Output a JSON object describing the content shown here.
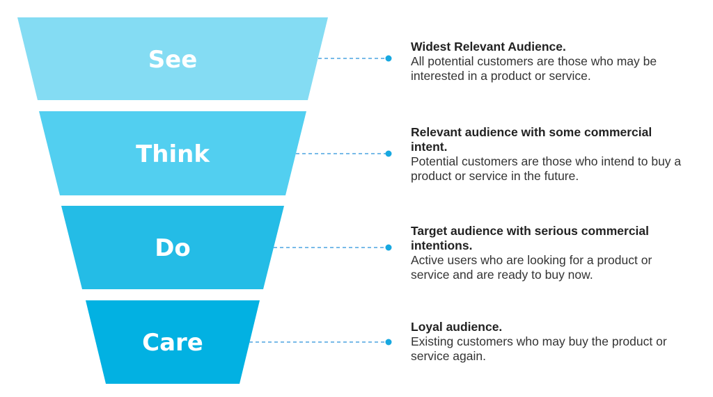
{
  "colors": {
    "connector": "#4aa3e0",
    "dot": "#17a8e0"
  },
  "stages": [
    {
      "label": "See",
      "color": "#84dcf3",
      "title": "Widest Relevant Audience.",
      "description": "All potential customers are those who may be interested in a product or service."
    },
    {
      "label": "Think",
      "color": "#52cff0",
      "title": "Relevant audience with some commercial intent.",
      "description": "Potential customers are those who intend to buy a product or service in the future."
    },
    {
      "label": "Do",
      "color": "#24bce6",
      "title": "Target audience with serious commercial intentions.",
      "description": "Active users who are looking for a product or service and are ready to buy now."
    },
    {
      "label": "Care",
      "color": "#02b1e2",
      "title": "Loyal audience.",
      "description": "Existing customers who may buy the product or service again."
    }
  ]
}
